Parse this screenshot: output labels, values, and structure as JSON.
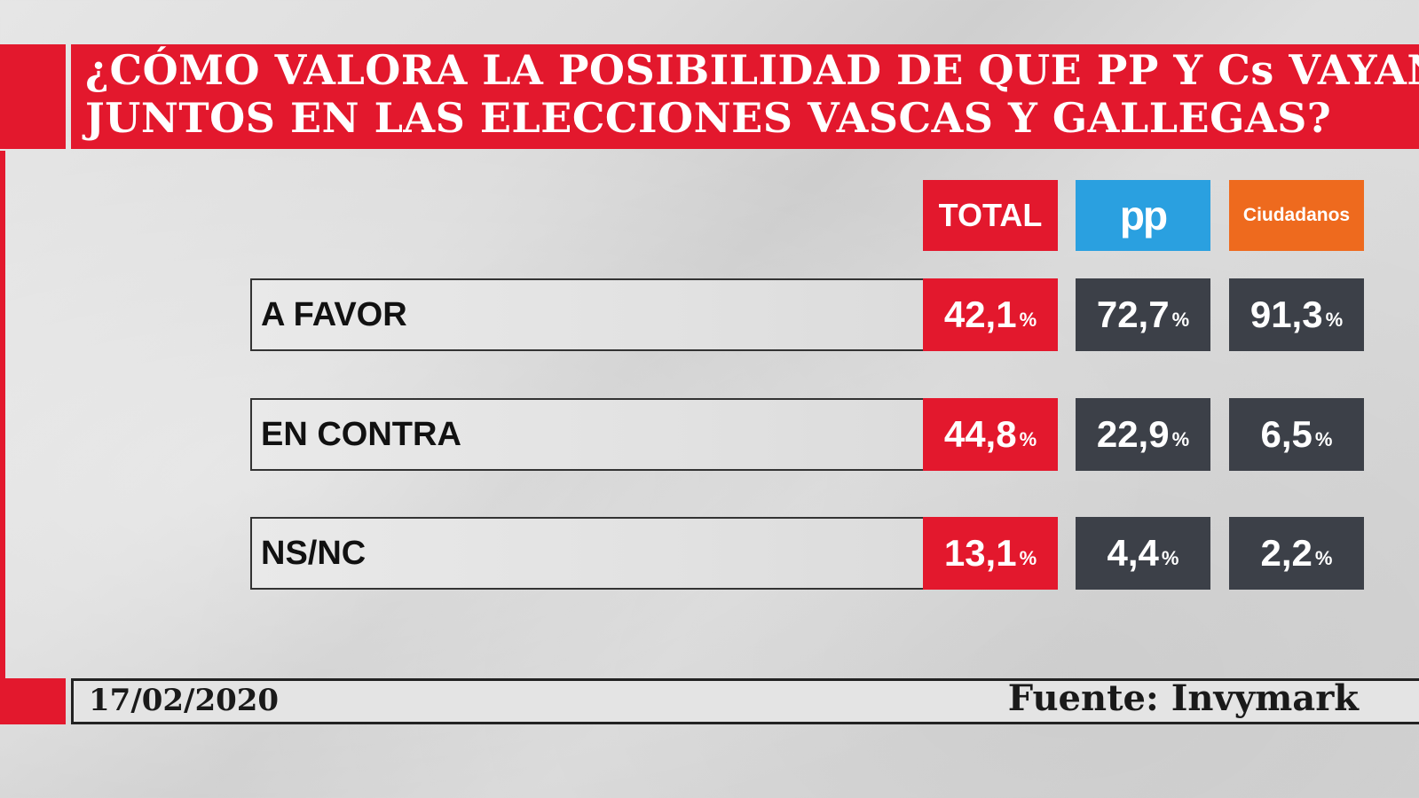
{
  "header": {
    "title_line1": "¿CÓMO VALORA LA POSIBILIDAD DE QUE PP Y Cs VAYAN",
    "title_line2": "JUNTOS EN LAS ELECCIONES VASCAS Y GALLEGAS?"
  },
  "columns": {
    "total": "TOTAL",
    "pp": "pp",
    "cs": "Ciudadanos"
  },
  "percent_symbol": "%",
  "rows": [
    {
      "label": "A FAVOR",
      "total": "42,1",
      "pp": "72,7",
      "cs": "91,3"
    },
    {
      "label": "EN CONTRA",
      "total": "44,8",
      "pp": "22,9",
      "cs": "6,5"
    },
    {
      "label": "NS/NC",
      "total": "13,1",
      "pp": "4,4",
      "cs": "2,2"
    }
  ],
  "footer": {
    "date": "17/02/2020",
    "source": "Fuente: Invymark"
  },
  "colors": {
    "red": "#e3182d",
    "pp_blue": "#2aa0e0",
    "cs_orange": "#ee6a1e",
    "cell_dark": "#3c4048"
  },
  "chart_data": {
    "type": "table",
    "title": "¿CÓMO VALORA LA POSIBILIDAD DE QUE PP Y Cs VAYAN JUNTOS EN LAS ELECCIONES VASCAS Y GALLEGAS?",
    "categories": [
      "A FAVOR",
      "EN CONTRA",
      "NS/NC"
    ],
    "series": [
      {
        "name": "TOTAL",
        "values": [
          42.1,
          44.8,
          13.1
        ]
      },
      {
        "name": "pp",
        "values": [
          72.7,
          22.9,
          4.4
        ]
      },
      {
        "name": "Ciudadanos",
        "values": [
          91.3,
          6.5,
          2.2
        ]
      }
    ],
    "unit": "%"
  }
}
